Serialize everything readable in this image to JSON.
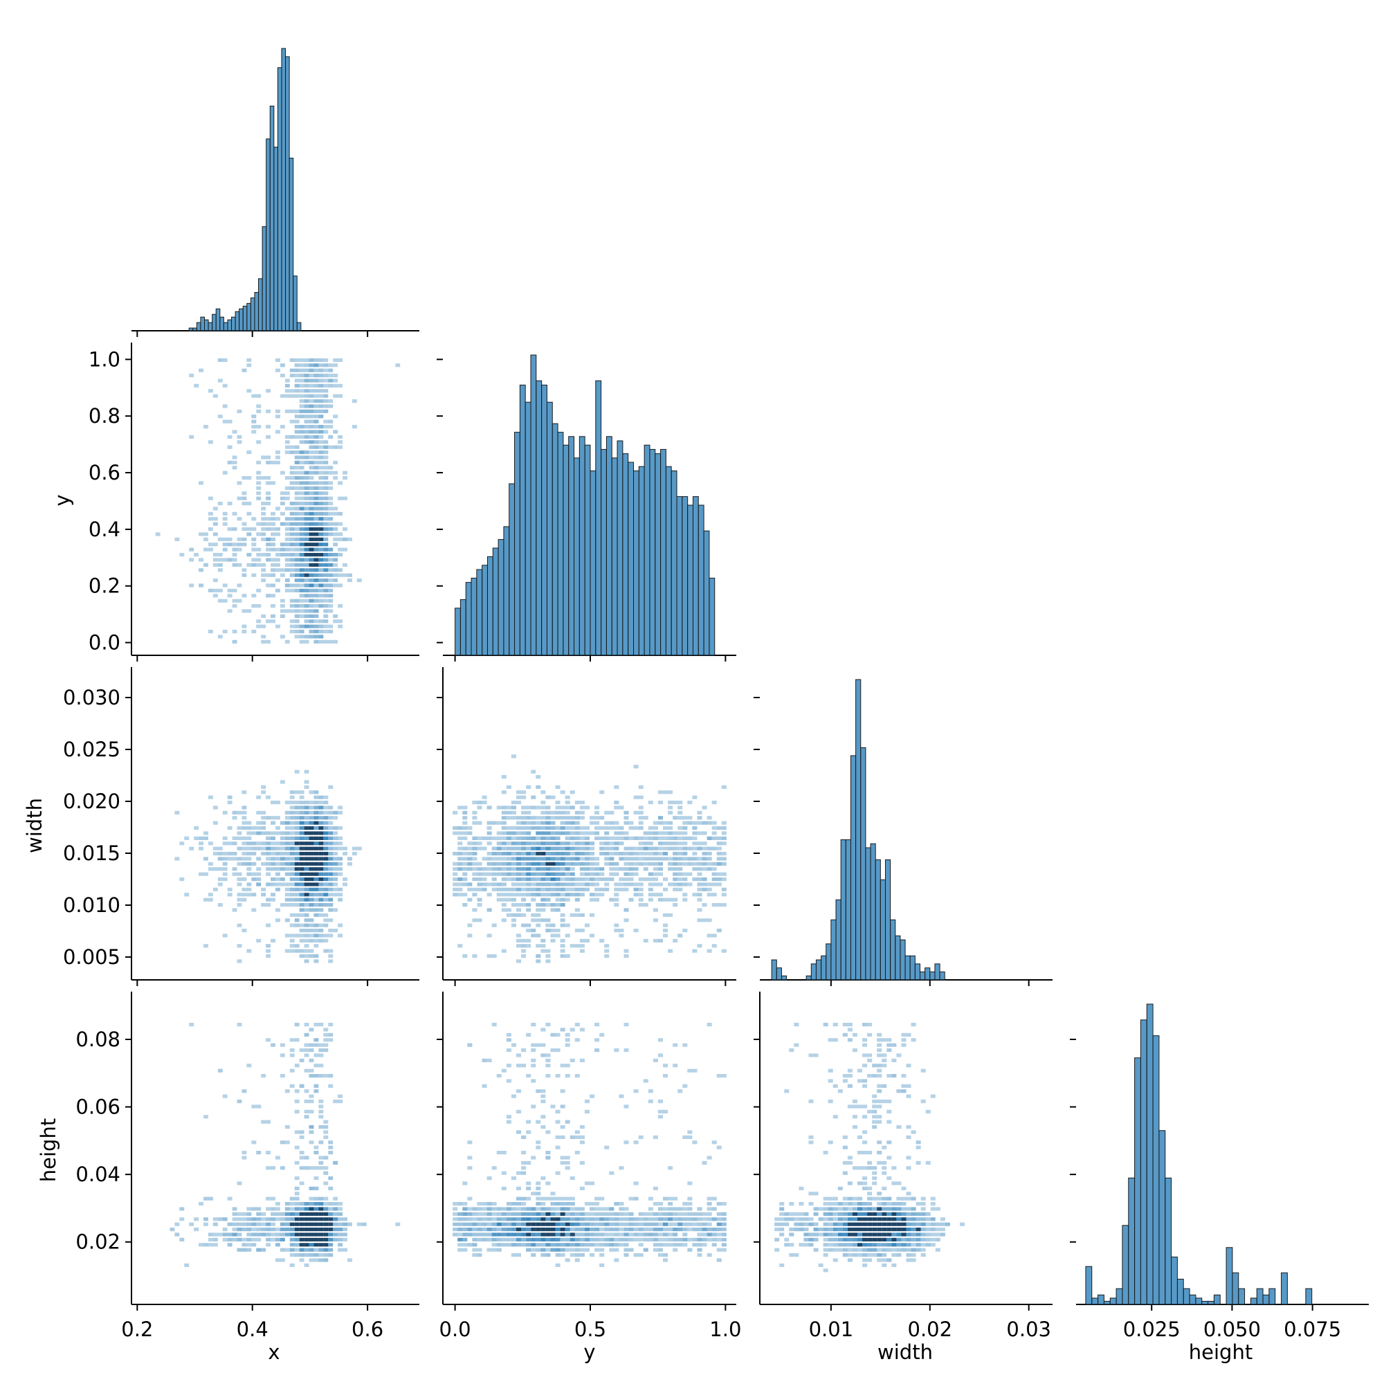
{
  "chart_data": {
    "type": "pairplot",
    "variables": [
      "x",
      "y",
      "width",
      "height"
    ],
    "axis_labels": {
      "x": "x",
      "y": "y",
      "width": "width",
      "height": "height"
    },
    "color": "#1f77b4",
    "ticks": {
      "x": {
        "range": [
          0.19,
          0.69
        ],
        "values": [
          0.2,
          0.4,
          0.6
        ],
        "labels": [
          "0.2",
          "0.4",
          "0.6"
        ]
      },
      "y": {
        "range": [
          -0.045,
          1.04
        ],
        "values": [
          0.0,
          0.5,
          1.0
        ],
        "labels": [
          "0.0",
          "0.5",
          "1.0"
        ],
        "rowvalues": [
          0.0,
          0.2,
          0.4,
          0.6,
          0.8,
          1.0
        ],
        "rowlabels": [
          "0.0",
          "0.2",
          "0.4",
          "0.6",
          "0.8",
          "1.0"
        ]
      },
      "width": {
        "range": [
          0.0028,
          0.0324
        ],
        "values": [
          0.01,
          0.02,
          0.03
        ],
        "labels": [
          "0.01",
          "0.02",
          "0.03"
        ],
        "rowvalues": [
          0.005,
          0.01,
          0.015,
          0.02,
          0.025,
          0.03
        ],
        "rowlabels": [
          "0.005",
          "0.010",
          "0.015",
          "0.020",
          "0.025",
          "0.030"
        ]
      },
      "height": {
        "range": [
          0.0015,
          0.0925
        ],
        "values": [
          0.025,
          0.05,
          0.075
        ],
        "labels": [
          "0.025",
          "0.050",
          "0.075"
        ],
        "rowvalues": [
          0.02,
          0.04,
          0.06,
          0.08
        ],
        "rowlabels": [
          "0.02",
          "0.04",
          "0.06",
          "0.08"
        ]
      }
    },
    "histograms": {
      "x": {
        "bin_start": 0.29,
        "bin_width": 0.0067,
        "counts": [
          1,
          1,
          3,
          5,
          4,
          3,
          6,
          8,
          5,
          3,
          4,
          5,
          7,
          8,
          9,
          10,
          12,
          14,
          19,
          38,
          70,
          82,
          67,
          96,
          103,
          100,
          63,
          20,
          3
        ]
      },
      "y": {
        "bin_start": 0.0,
        "bin_width": 0.02,
        "counts": [
          11,
          13,
          17,
          18,
          20,
          21,
          23,
          25,
          27,
          30,
          40,
          52,
          63,
          59,
          70,
          64,
          63,
          59,
          54,
          52,
          49,
          51,
          46,
          51,
          49,
          43,
          64,
          48,
          51,
          46,
          50,
          47,
          45,
          43,
          44,
          49,
          48,
          47,
          48,
          44,
          43,
          37,
          37,
          35,
          37,
          35,
          29,
          18
        ]
      },
      "width": {
        "bin_start": 0.004,
        "bin_width": 0.0005,
        "counts": [
          5,
          3,
          1,
          0,
          0,
          0,
          0,
          1,
          4,
          5,
          6,
          9,
          15,
          20,
          35,
          35,
          56,
          75,
          58,
          33,
          34,
          30,
          25,
          30,
          15,
          11,
          10,
          6,
          6,
          4,
          2,
          3,
          2,
          4,
          2
        ]
      },
      "height": {
        "bin_start": 0.0045,
        "bin_width": 0.0019,
        "counts": [
          12,
          2,
          3,
          1,
          2,
          5,
          25,
          40,
          78,
          90,
          95,
          85,
          55,
          40,
          15,
          8,
          5,
          3,
          2,
          1,
          1,
          3,
          0,
          18,
          10,
          5,
          0,
          2,
          5,
          3,
          5,
          0,
          10,
          0,
          0,
          0,
          5
        ]
      }
    }
  }
}
